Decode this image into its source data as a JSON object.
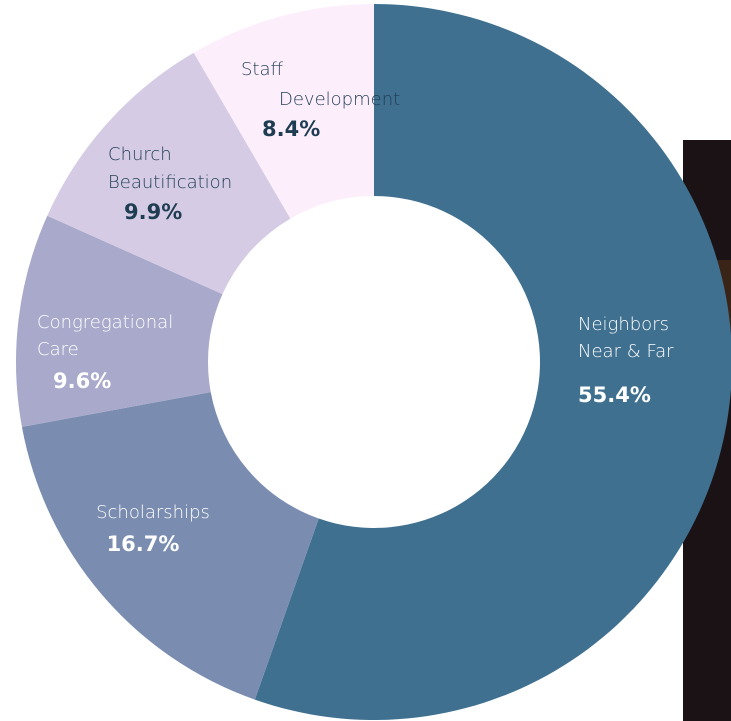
{
  "chart_data": {
    "type": "donut",
    "categories": [
      [
        "Neighbors",
        "Near & Far"
      ],
      [
        "Scholarships"
      ],
      [
        "Congregational",
        "Care"
      ],
      [
        "Church",
        "Beautification"
      ],
      [
        "Staff",
        "Development"
      ]
    ],
    "values": [
      55.4,
      16.7,
      9.6,
      9.9,
      8.4
    ],
    "value_labels": [
      "55.4%",
      "16.7%",
      "9.6%",
      "9.9%",
      "8.4%"
    ],
    "colors": [
      "#3f7090",
      "#7a8db0",
      "#a9aacb",
      "#d5cbe4",
      "#fdeefc"
    ],
    "label_colors": [
      "#ffffff",
      "#ffffff",
      "#ffffff",
      "#1f3d52",
      "#1f3d52"
    ]
  }
}
